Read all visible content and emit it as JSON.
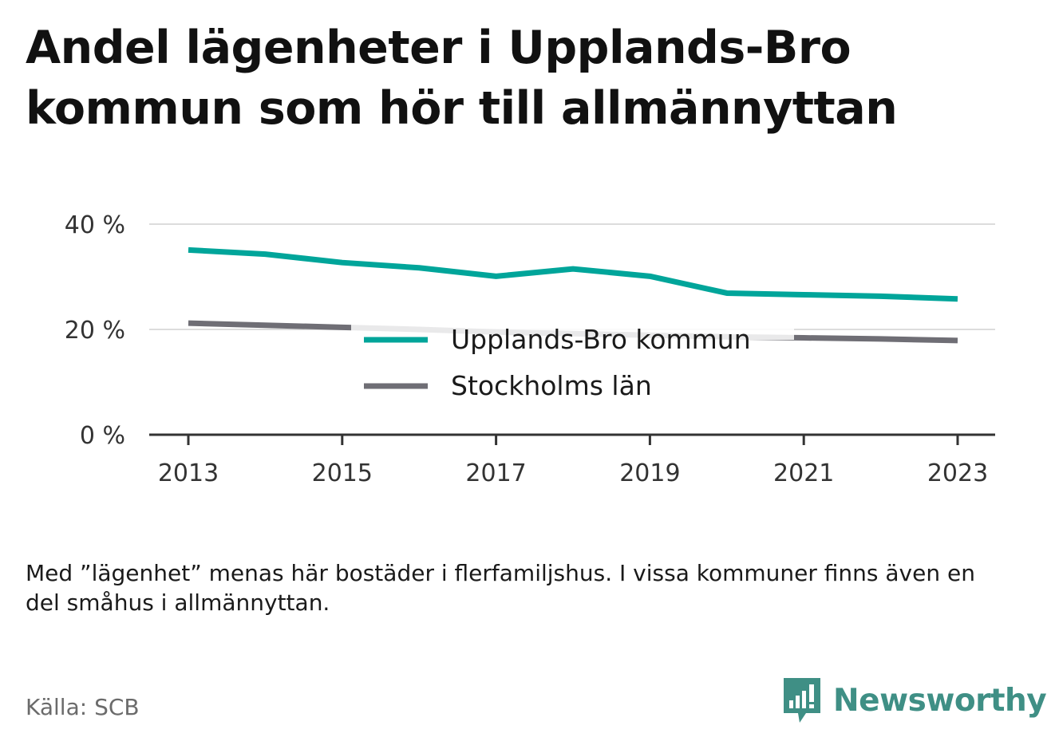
{
  "title": "Andel lägenheter i Upplands-Bro kommun som hör till allmännyttan",
  "note": "Med ”lägenhet” menas här bostäder i flerfamiljshus. I vissa kommuner finns även en del småhus i allmännyttan.",
  "source": "Källa: SCB",
  "brand": {
    "name": "Newsworthy",
    "icon": "newsworthy-logo-icon",
    "color": "#3f8f85"
  },
  "chart_data": {
    "type": "line",
    "x": [
      2013,
      2014,
      2015,
      2016,
      2017,
      2018,
      2019,
      2020,
      2021,
      2022,
      2023
    ],
    "x_tick_labels": [
      "2013",
      "2015",
      "2017",
      "2019",
      "2021",
      "2023"
    ],
    "y_tick_labels": [
      "0 %",
      "20 %",
      "40 %"
    ],
    "ylim": [
      0,
      40
    ],
    "grid": true,
    "legend_position": "center",
    "series": [
      {
        "name": "Upplands-Bro kommun",
        "color": "#00a59a",
        "values": [
          35.1,
          34.3,
          32.7,
          31.7,
          30.1,
          31.5,
          30.1,
          26.9,
          26.6,
          26.3,
          25.8
        ]
      },
      {
        "name": "Stockholms län",
        "color": "#6f6e75",
        "values": [
          21.2,
          20.8,
          20.4,
          20.0,
          19.5,
          19.2,
          18.9,
          18.6,
          18.4,
          18.2,
          17.9
        ]
      }
    ]
  }
}
